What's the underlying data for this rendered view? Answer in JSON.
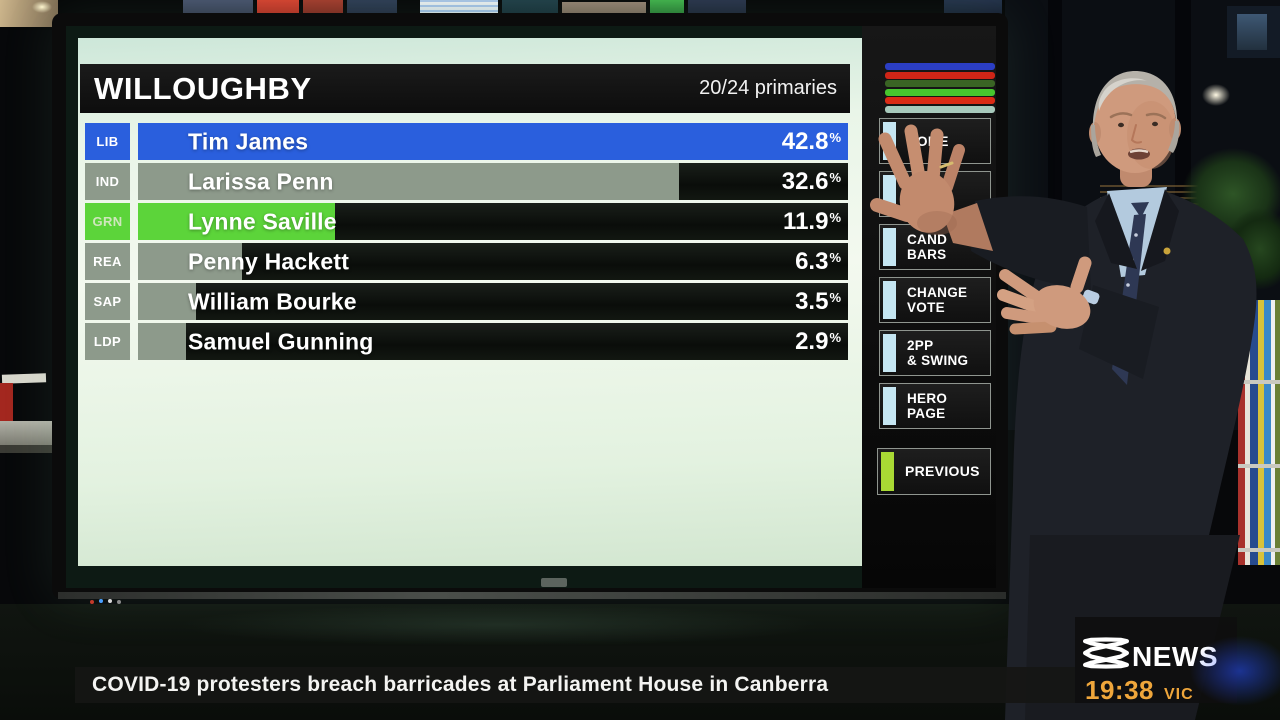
{
  "chart_data": {
    "type": "bar",
    "orientation": "horizontal",
    "title": "WILLOUGHBY",
    "subtitle": "20/24 primaries",
    "categories": [
      "Tim James (LIB)",
      "Larissa Penn (IND)",
      "Lynne Saville (GRN)",
      "Penny Hackett (REA)",
      "William Bourke (SAP)",
      "Samuel Gunning (LDP)"
    ],
    "values": [
      42.8,
      32.6,
      11.9,
      6.3,
      3.5,
      2.9
    ],
    "unit": "%",
    "bar_scale_max": 42.8,
    "bar_colors": [
      "#2a5fdd",
      "#8d9a8b",
      "#5cd43a",
      "#8d9a8b",
      "#8d9a8b",
      "#8d9a8b"
    ],
    "legend_position": "none",
    "grid": false
  },
  "screen": {
    "title": "WILLOUGHBY",
    "progress_label": "20/24 primaries",
    "percent_sign": "%",
    "table": {
      "rows": [
        {
          "party": "LIB",
          "name": "Tim James",
          "pct": "42.8",
          "bar_pct": 100,
          "color": "#2a5fdd",
          "label_text": "#ffffff"
        },
        {
          "party": "IND",
          "name": "Larissa Penn",
          "pct": "32.6",
          "bar_pct": 76.2,
          "color": "#8d9a8b",
          "label_text": "#ffffff"
        },
        {
          "party": "GRN",
          "name": "Lynne Saville",
          "pct": "11.9",
          "bar_pct": 27.8,
          "color": "#5cd43a",
          "label_text": "#cfe6bd"
        },
        {
          "party": "REA",
          "name": "Penny Hackett",
          "pct": "6.3",
          "bar_pct": 14.7,
          "color": "#8d9a8b",
          "label_text": "#ffffff"
        },
        {
          "party": "SAP",
          "name": "William Bourke",
          "pct": "3.5",
          "bar_pct": 8.2,
          "color": "#8d9a8b",
          "label_text": "#ffffff"
        },
        {
          "party": "LDP",
          "name": "Samuel Gunning",
          "pct": "2.9",
          "bar_pct": 6.8,
          "color": "#8d9a8b",
          "label_text": "#ffffff"
        }
      ]
    },
    "menu": {
      "legend_bar_colors": [
        "#2b3ec4",
        "#cf2517",
        "#3a6424",
        "#47c52e",
        "#da2b15",
        "#a8cabc"
      ],
      "stripe_color": "#c5e6f2",
      "items": [
        {
          "line1": "HOME",
          "line2": ""
        },
        {
          "line1": "",
          "line2": ""
        },
        {
          "line1": "CAND",
          "line2": "BARS"
        },
        {
          "line1": "CHANGE",
          "line2": "VOTE"
        },
        {
          "line1": "2PP",
          "line2": "& SWING"
        },
        {
          "line1": "HERO",
          "line2": "PAGE"
        }
      ],
      "previous": {
        "label": "PREVIOUS",
        "stripe_color": "#a9d934"
      }
    }
  },
  "ticker": {
    "headline": "COVID-19 protesters breach barricades at Parliament House in Canberra"
  },
  "branding": {
    "news_wordmark": "NEWS",
    "time": "19:38",
    "region": "VIC",
    "accent_color": "#efa63b"
  }
}
